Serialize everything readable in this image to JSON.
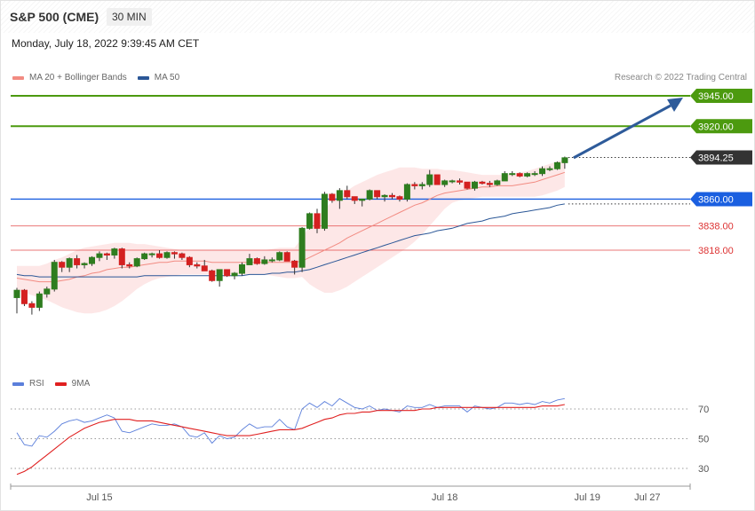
{
  "header": {
    "title": "S&P 500 (CME)",
    "interval": "30 MIN",
    "timestamp": "Monday, July 18, 2022 9:39:45 AM CET"
  },
  "legend_main": [
    {
      "label": "MA 20 + Bollinger Bands",
      "color": "#f28b82"
    },
    {
      "label": "MA 50",
      "color": "#2b5797"
    }
  ],
  "legend_rsi": [
    {
      "label": "RSI",
      "color": "#5b7fdb"
    },
    {
      "label": "9MA",
      "color": "#e02020"
    }
  ],
  "credit": "Research © 2022 Trading Central",
  "colors": {
    "green_level": "#4c9a0f",
    "blue_level": "#1a5fe0",
    "red_level": "#e34a4a",
    "current_price": "#333333",
    "arrow": "#2e5b9a",
    "candle_up": "#2e7d1f",
    "candle_down": "#d42020",
    "band_fill": "#fde3e3"
  },
  "chart_data": [
    {
      "type": "candlestick",
      "title": "S&P 500 (CME)",
      "interval": "30 MIN",
      "ylim": [
        3751,
        3962
      ],
      "levels": [
        {
          "value": 3945.0,
          "label": "3945.00",
          "kind": "resistance",
          "style": "green"
        },
        {
          "value": 3920.0,
          "label": "3920.00",
          "kind": "resistance",
          "style": "green"
        },
        {
          "value": 3894.25,
          "label": "3894.25",
          "kind": "last",
          "style": "dark"
        },
        {
          "value": 3860.0,
          "label": "3860.00",
          "kind": "pivot",
          "style": "blue"
        },
        {
          "value": 3838.0,
          "label": "3838.00",
          "kind": "support",
          "style": "red"
        },
        {
          "value": 3818.0,
          "label": "3818.00",
          "kind": "support",
          "style": "red"
        }
      ],
      "x_ticks": [
        {
          "label": "Jul 15",
          "index": 11
        },
        {
          "label": "Jul 18",
          "index": 57
        },
        {
          "label": "Jul 19",
          "index": 76
        },
        {
          "label": "Jul 27",
          "index": 84
        }
      ],
      "candles": [
        [
          3779,
          3787,
          3766,
          3785
        ],
        [
          3785,
          3786,
          3772,
          3774
        ],
        [
          3774,
          3776,
          3765,
          3771
        ],
        [
          3771,
          3784,
          3768,
          3782
        ],
        [
          3782,
          3788,
          3779,
          3786
        ],
        [
          3786,
          3810,
          3784,
          3808
        ],
        [
          3808,
          3809,
          3800,
          3804
        ],
        [
          3804,
          3812,
          3800,
          3811
        ],
        [
          3811,
          3814,
          3803,
          3806
        ],
        [
          3806,
          3808,
          3803,
          3807
        ],
        [
          3807,
          3813,
          3805,
          3812
        ],
        [
          3812,
          3817,
          3809,
          3815
        ],
        [
          3815,
          3816,
          3810,
          3814
        ],
        [
          3814,
          3820,
          3811,
          3819
        ],
        [
          3819,
          3820,
          3803,
          3806
        ],
        [
          3806,
          3808,
          3803,
          3805
        ],
        [
          3805,
          3812,
          3804,
          3811
        ],
        [
          3811,
          3816,
          3810,
          3815
        ],
        [
          3815,
          3816,
          3812,
          3815
        ],
        [
          3815,
          3818,
          3811,
          3812
        ],
        [
          3812,
          3817,
          3811,
          3816
        ],
        [
          3816,
          3817,
          3811,
          3815
        ],
        [
          3815,
          3816,
          3810,
          3812
        ],
        [
          3812,
          3813,
          3804,
          3806
        ],
        [
          3806,
          3808,
          3803,
          3805
        ],
        [
          3805,
          3810,
          3801,
          3801
        ],
        [
          3801,
          3802,
          3792,
          3793
        ],
        [
          3793,
          3802,
          3788,
          3802
        ],
        [
          3802,
          3802,
          3796,
          3797
        ],
        [
          3797,
          3800,
          3794,
          3799
        ],
        [
          3799,
          3808,
          3797,
          3806
        ],
        [
          3806,
          3815,
          3806,
          3811
        ],
        [
          3811,
          3812,
          3806,
          3807
        ],
        [
          3807,
          3813,
          3806,
          3810
        ],
        [
          3810,
          3812,
          3808,
          3810
        ],
        [
          3810,
          3817,
          3809,
          3816
        ],
        [
          3816,
          3817,
          3809,
          3809
        ],
        [
          3809,
          3810,
          3798,
          3804
        ],
        [
          3804,
          3837,
          3800,
          3836
        ],
        [
          3836,
          3849,
          3835,
          3848
        ],
        [
          3848,
          3852,
          3832,
          3836
        ],
        [
          3836,
          3866,
          3834,
          3864
        ],
        [
          3864,
          3865,
          3857,
          3859
        ],
        [
          3859,
          3869,
          3852,
          3867
        ],
        [
          3867,
          3871,
          3860,
          3862
        ],
        [
          3862,
          3862,
          3856,
          3859
        ],
        [
          3859,
          3860,
          3854,
          3860
        ],
        [
          3860,
          3868,
          3859,
          3867
        ],
        [
          3867,
          3867,
          3860,
          3862
        ],
        [
          3862,
          3864,
          3858,
          3863
        ],
        [
          3863,
          3865,
          3860,
          3862
        ],
        [
          3862,
          3863,
          3858,
          3860
        ],
        [
          3860,
          3873,
          3858,
          3872
        ],
        [
          3872,
          3874,
          3868,
          3871
        ],
        [
          3871,
          3874,
          3868,
          3872
        ],
        [
          3872,
          3884,
          3870,
          3880
        ],
        [
          3880,
          3880,
          3872,
          3872
        ],
        [
          3872,
          3876,
          3870,
          3875
        ],
        [
          3875,
          3876,
          3873,
          3875
        ],
        [
          3875,
          3877,
          3872,
          3874
        ],
        [
          3874,
          3874,
          3868,
          3869
        ],
        [
          3869,
          3875,
          3867,
          3874
        ],
        [
          3874,
          3875,
          3872,
          3873
        ],
        [
          3873,
          3875,
          3870,
          3872
        ],
        [
          3872,
          3876,
          3871,
          3875
        ],
        [
          3875,
          3883,
          3875,
          3881
        ],
        [
          3881,
          3883,
          3879,
          3881
        ],
        [
          3881,
          3882,
          3878,
          3879
        ],
        [
          3879,
          3882,
          3878,
          3881
        ],
        [
          3881,
          3883,
          3879,
          3881
        ],
        [
          3881,
          3887,
          3879,
          3885
        ],
        [
          3885,
          3887,
          3883,
          3885
        ],
        [
          3885,
          3891,
          3884,
          3890
        ],
        [
          3890,
          3895,
          3885,
          3894
        ]
      ],
      "ma20": [
        3795,
        3794,
        3793,
        3792,
        3792,
        3792,
        3793,
        3794,
        3796,
        3797,
        3799,
        3800,
        3802,
        3803,
        3804,
        3804,
        3805,
        3806,
        3807,
        3808,
        3808,
        3809,
        3809,
        3809,
        3809,
        3809,
        3808,
        3808,
        3808,
        3808,
        3808,
        3808,
        3808,
        3808,
        3808,
        3808,
        3808,
        3808,
        3809,
        3812,
        3815,
        3818,
        3821,
        3824,
        3828,
        3831,
        3834,
        3837,
        3840,
        3843,
        3846,
        3849,
        3852,
        3855,
        3857,
        3860,
        3863,
        3865,
        3866,
        3867,
        3868,
        3869,
        3870,
        3870,
        3871,
        3871,
        3871,
        3872,
        3873,
        3874,
        3876,
        3878,
        3880,
        3882
      ],
      "bb_upper": [
        3805,
        3805,
        3805,
        3805,
        3807,
        3810,
        3812,
        3815,
        3818,
        3820,
        3821,
        3822,
        3823,
        3824,
        3824,
        3824,
        3823,
        3823,
        3822,
        3821,
        3820,
        3819,
        3818,
        3818,
        3818,
        3818,
        3818,
        3818,
        3818,
        3818,
        3818,
        3818,
        3818,
        3818,
        3819,
        3820,
        3820,
        3820,
        3828,
        3838,
        3845,
        3852,
        3858,
        3863,
        3867,
        3871,
        3874,
        3877,
        3880,
        3882,
        3884,
        3886,
        3886,
        3886,
        3885,
        3885,
        3885,
        3884,
        3884,
        3883,
        3882,
        3881,
        3880,
        3880,
        3880,
        3880,
        3881,
        3882,
        3883,
        3885,
        3887,
        3889,
        3891,
        3893
      ],
      "bb_lower": [
        3785,
        3783,
        3781,
        3779,
        3777,
        3774,
        3771,
        3769,
        3767,
        3766,
        3766,
        3767,
        3769,
        3772,
        3776,
        3781,
        3786,
        3790,
        3793,
        3795,
        3796,
        3797,
        3798,
        3798,
        3798,
        3798,
        3798,
        3798,
        3798,
        3798,
        3798,
        3798,
        3798,
        3798,
        3797,
        3796,
        3795,
        3795,
        3796,
        3790,
        3786,
        3783,
        3783,
        3785,
        3788,
        3792,
        3796,
        3800,
        3804,
        3808,
        3812,
        3816,
        3820,
        3825,
        3831,
        3838,
        3845,
        3852,
        3857,
        3859,
        3860,
        3861,
        3862,
        3862,
        3862,
        3862,
        3862,
        3862,
        3862,
        3862,
        3863,
        3865,
        3867,
        3870
      ],
      "ma50": [
        3798,
        3797,
        3797,
        3796,
        3796,
        3796,
        3796,
        3796,
        3796,
        3796,
        3796,
        3796,
        3796,
        3796,
        3796,
        3796,
        3796,
        3797,
        3797,
        3797,
        3797,
        3797,
        3797,
        3797,
        3797,
        3797,
        3797,
        3797,
        3797,
        3797,
        3797,
        3798,
        3798,
        3798,
        3799,
        3799,
        3800,
        3800,
        3801,
        3802,
        3804,
        3806,
        3808,
        3810,
        3812,
        3814,
        3816,
        3818,
        3820,
        3822,
        3824,
        3826,
        3828,
        3830,
        3831,
        3832,
        3834,
        3835,
        3836,
        3838,
        3840,
        3841,
        3842,
        3844,
        3845,
        3846,
        3848,
        3849,
        3850,
        3851,
        3852,
        3853,
        3855,
        3856
      ]
    },
    {
      "type": "line",
      "title": "RSI",
      "ylim": [
        20,
        80
      ],
      "y_ticks": [
        70,
        50,
        30
      ],
      "series": [
        {
          "name": "RSI",
          "color": "#5b7fdb",
          "values": [
            54,
            46,
            45,
            52,
            51,
            55,
            60,
            62,
            63,
            61,
            62,
            64,
            66,
            64,
            55,
            54,
            56,
            58,
            60,
            59,
            59,
            60,
            58,
            52,
            51,
            54,
            47,
            52,
            50,
            51,
            56,
            60,
            57,
            58,
            58,
            63,
            58,
            56,
            70,
            74,
            71,
            75,
            72,
            77,
            74,
            71,
            70,
            72,
            69,
            70,
            69,
            68,
            72,
            71,
            71,
            73,
            71,
            72,
            72,
            72,
            68,
            72,
            71,
            70,
            71,
            74,
            74,
            73,
            74,
            73,
            75,
            74,
            76,
            77
          ]
        },
        {
          "name": "9MA",
          "color": "#e02020",
          "values": [
            26,
            28,
            31,
            35,
            39,
            43,
            47,
            51,
            54,
            57,
            59,
            61,
            62,
            63,
            63,
            63,
            62,
            62,
            62,
            61,
            60,
            59,
            58,
            57,
            56,
            55,
            54,
            53,
            52,
            52,
            52,
            52,
            53,
            54,
            55,
            56,
            56,
            56,
            57,
            59,
            61,
            63,
            64,
            66,
            67,
            67,
            68,
            68,
            69,
            69,
            69,
            69,
            69,
            69,
            70,
            70,
            71,
            71,
            71,
            71,
            71,
            71,
            71,
            71,
            71,
            71,
            71,
            71,
            71,
            71,
            72,
            72,
            72,
            73
          ]
        }
      ]
    }
  ]
}
